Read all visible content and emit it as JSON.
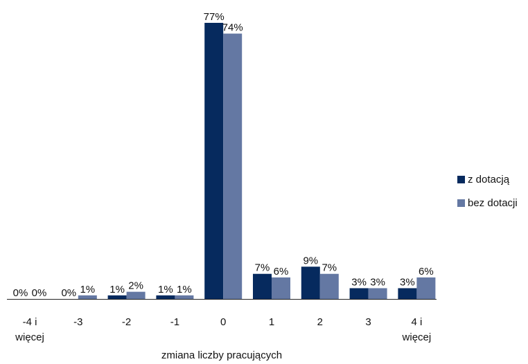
{
  "chart_data": {
    "type": "bar",
    "xlabel": "zmiana liczby pracujących",
    "ylabel": "",
    "ylim": [
      0,
      77
    ],
    "categories": [
      [
        "-4 i",
        "więcej"
      ],
      [
        "-3"
      ],
      [
        "-2"
      ],
      [
        "-1"
      ],
      [
        "0"
      ],
      [
        "1"
      ],
      [
        "2"
      ],
      [
        "3"
      ],
      [
        "4 i",
        "więcej"
      ]
    ],
    "series": [
      {
        "name": "z dotacją",
        "color": "#062a5e",
        "values": [
          0,
          0,
          1,
          1,
          77,
          7,
          9,
          3,
          3
        ],
        "labels": [
          "0%",
          "0%",
          "1%",
          "1%",
          "77%",
          "7%",
          "9%",
          "3%",
          "3%"
        ]
      },
      {
        "name": "bez dotacji",
        "color": "#6478a3",
        "values": [
          0,
          1,
          2,
          1,
          74,
          6,
          7,
          3,
          6
        ],
        "labels": [
          "0%",
          "1%",
          "2%",
          "1%",
          "74%",
          "6%",
          "7%",
          "3%",
          "6%"
        ]
      }
    ],
    "grid": false,
    "legend_position": "right"
  }
}
